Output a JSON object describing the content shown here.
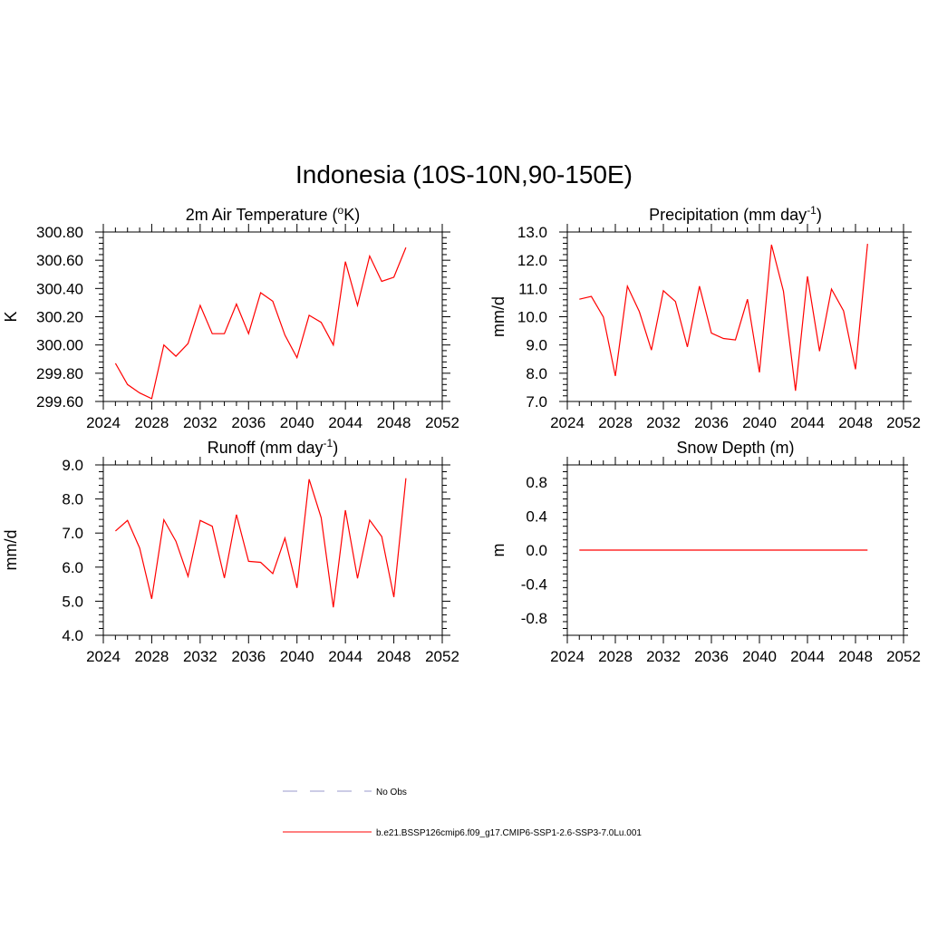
{
  "figure": {
    "title": "Indonesia (10S-10N,90-150E)"
  },
  "legend": [
    {
      "label": "No Obs",
      "color": "#9999cc",
      "dash": true
    },
    {
      "label": "b.e21.BSSP126cmip6.f09_g17.CMIP6-SSP1-2.6-SSP3-7.0Lu.001",
      "color": "#ff0000",
      "dash": false
    }
  ],
  "chart_data": [
    {
      "type": "line",
      "title_main": "2m Air Temperature (",
      "title_sup": "o",
      "title_tail": "K)",
      "ylabel": "K",
      "xlim": [
        2024,
        2052
      ],
      "ylim": [
        299.6,
        300.8
      ],
      "xticks": [
        "2024",
        "2028",
        "2032",
        "2036",
        "2040",
        "2044",
        "2048",
        "2052"
      ],
      "yticks": [
        "299.60",
        "299.80",
        "300.00",
        "300.20",
        "300.40",
        "300.60",
        "300.80"
      ],
      "series": [
        {
          "color": "#ff0000",
          "x": [
            2025,
            2026,
            2027,
            2028,
            2029,
            2030,
            2031,
            2032,
            2033,
            2034,
            2035,
            2036,
            2037,
            2038,
            2039,
            2040,
            2041,
            2042,
            2043,
            2044,
            2045,
            2046,
            2047,
            2048,
            2049
          ],
          "y": [
            299.87,
            299.72,
            299.66,
            299.62,
            300.0,
            299.92,
            300.01,
            300.28,
            300.08,
            300.08,
            300.29,
            300.08,
            300.37,
            300.31,
            300.07,
            299.91,
            300.21,
            300.16,
            300.0,
            300.59,
            300.28,
            300.63,
            300.45,
            300.48,
            300.69
          ]
        }
      ]
    },
    {
      "type": "line",
      "title_main": "Precipitation (mm day",
      "title_sup": "-1",
      "title_tail": ")",
      "ylabel": "mm/d",
      "xlim": [
        2024,
        2052
      ],
      "ylim": [
        7.0,
        13.0
      ],
      "xticks": [
        "2024",
        "2028",
        "2032",
        "2036",
        "2040",
        "2044",
        "2048",
        "2052"
      ],
      "yticks": [
        "7.0",
        "8.0",
        "9.0",
        "10.0",
        "11.0",
        "12.0",
        "13.0"
      ],
      "series": [
        {
          "color": "#ff0000",
          "x": [
            2025,
            2026,
            2027,
            2028,
            2029,
            2030,
            2031,
            2032,
            2033,
            2034,
            2035,
            2036,
            2037,
            2038,
            2039,
            2040,
            2041,
            2042,
            2043,
            2044,
            2045,
            2046,
            2047,
            2048,
            2049
          ],
          "y": [
            10.62,
            10.72,
            9.99,
            7.9,
            11.08,
            10.18,
            8.82,
            10.92,
            10.54,
            8.93,
            11.08,
            9.42,
            9.23,
            9.18,
            10.62,
            8.03,
            12.55,
            10.9,
            7.38,
            11.43,
            8.78,
            10.98,
            10.21,
            8.14,
            12.58
          ]
        }
      ]
    },
    {
      "type": "line",
      "title_main": "Runoff (mm day",
      "title_sup": "-1",
      "title_tail": ")",
      "ylabel": "mm/d",
      "xlim": [
        2024,
        2052
      ],
      "ylim": [
        4.0,
        9.0
      ],
      "xticks": [
        "2024",
        "2028",
        "2032",
        "2036",
        "2040",
        "2044",
        "2048",
        "2052"
      ],
      "yticks": [
        "4.0",
        "5.0",
        "6.0",
        "7.0",
        "8.0",
        "9.0"
      ],
      "series": [
        {
          "color": "#ff0000",
          "x": [
            2025,
            2026,
            2027,
            2028,
            2029,
            2030,
            2031,
            2032,
            2033,
            2034,
            2035,
            2036,
            2037,
            2038,
            2039,
            2040,
            2041,
            2042,
            2043,
            2044,
            2045,
            2046,
            2047,
            2048,
            2049
          ],
          "y": [
            7.06,
            7.37,
            6.56,
            5.07,
            7.39,
            6.76,
            5.73,
            7.37,
            7.2,
            5.68,
            7.54,
            6.17,
            6.14,
            5.81,
            6.85,
            5.39,
            8.58,
            7.45,
            4.82,
            7.67,
            5.67,
            7.38,
            6.9,
            5.12,
            8.61
          ]
        }
      ]
    },
    {
      "type": "line",
      "title_main": "Snow Depth (m)",
      "title_sup": "",
      "title_tail": "",
      "ylabel": "m",
      "xlim": [
        2024,
        2052
      ],
      "ylim": [
        -1.0,
        1.0
      ],
      "xticks": [
        "2024",
        "2028",
        "2032",
        "2036",
        "2040",
        "2044",
        "2048",
        "2052"
      ],
      "yticks": [
        "-0.8",
        "-0.4",
        "0.0",
        "0.4",
        "0.8"
      ],
      "ytick_values": [
        -0.8,
        -0.4,
        0.0,
        0.4,
        0.8
      ],
      "series": [
        {
          "color": "#ff0000",
          "x": [
            2025,
            2026,
            2027,
            2028,
            2029,
            2030,
            2031,
            2032,
            2033,
            2034,
            2035,
            2036,
            2037,
            2038,
            2039,
            2040,
            2041,
            2042,
            2043,
            2044,
            2045,
            2046,
            2047,
            2048,
            2049
          ],
          "y": [
            0,
            0,
            0,
            0,
            0,
            0,
            0,
            0,
            0,
            0,
            0,
            0,
            0,
            0,
            0,
            0,
            0,
            0,
            0,
            0,
            0,
            0,
            0,
            0,
            0
          ]
        }
      ]
    }
  ]
}
